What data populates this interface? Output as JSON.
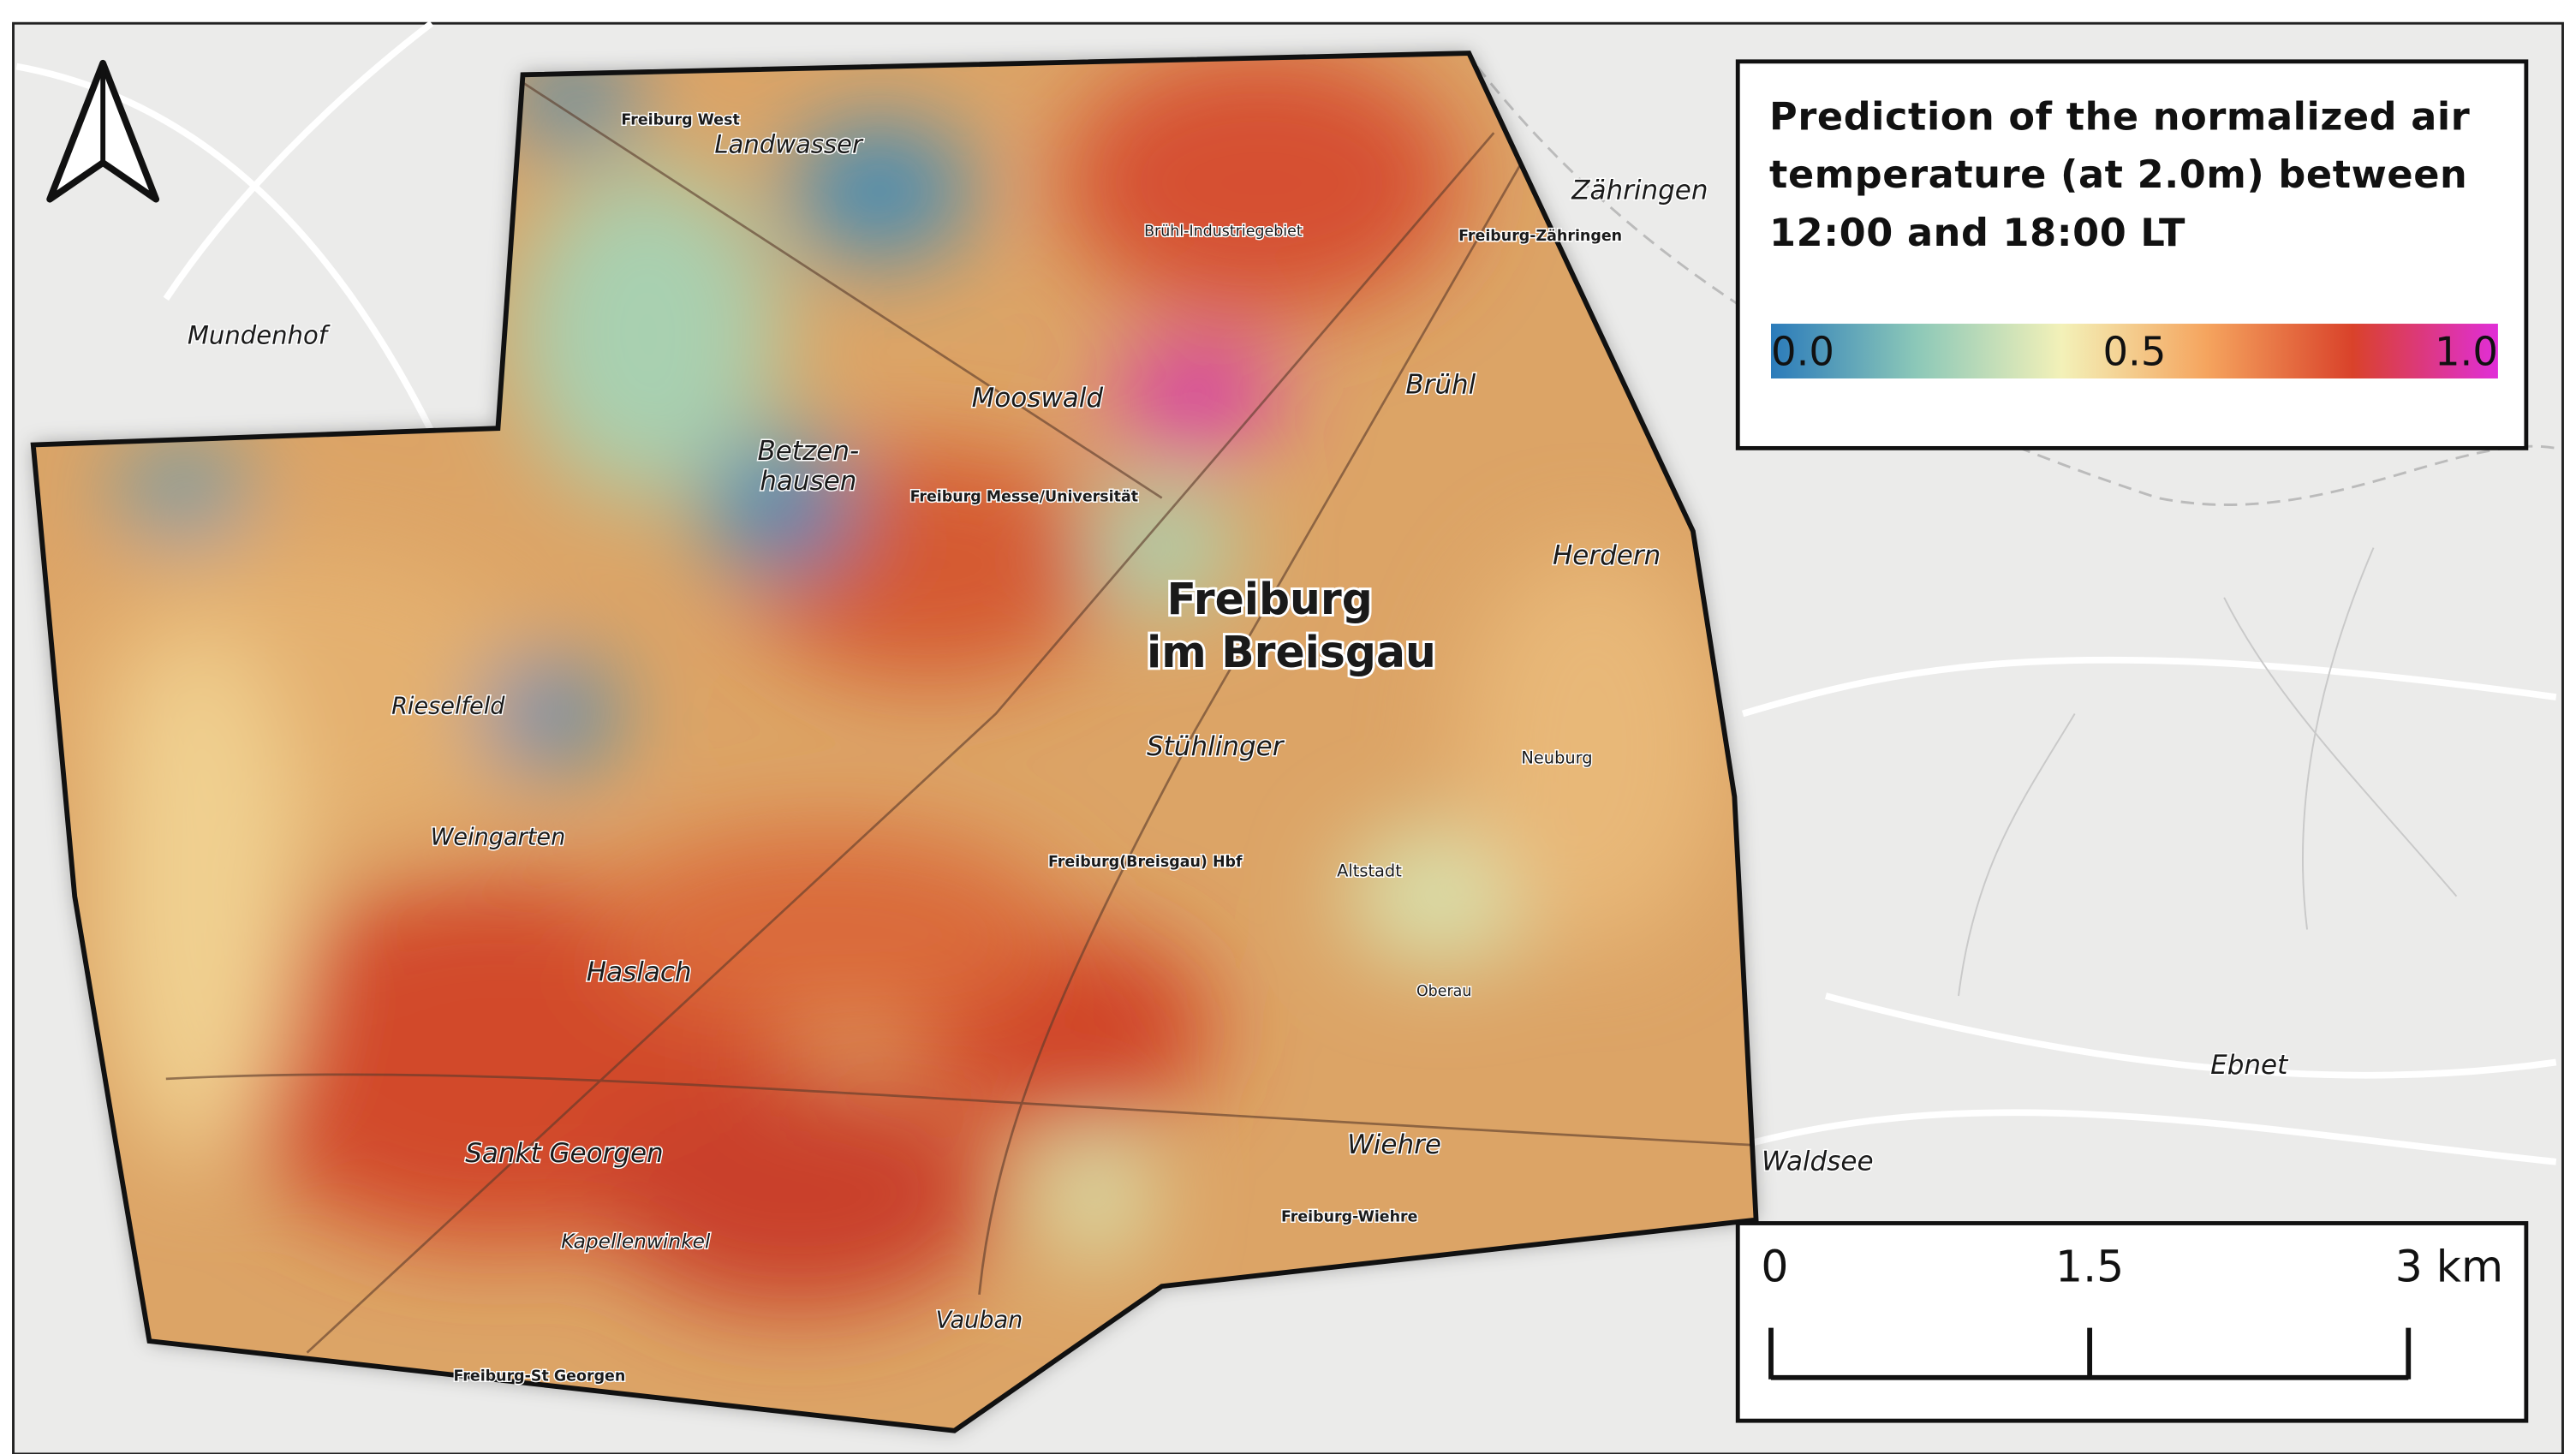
{
  "legend": {
    "title": "Prediction of the normalized air temperature (at 2.0m) between 12:00 and 18:00 LT",
    "lim": [
      0,
      1
    ],
    "ticks": [
      {
        "value": 0,
        "label": "0.0"
      },
      {
        "value": 0.5,
        "label": "0.5"
      },
      {
        "value": 1,
        "label": "1.0"
      }
    ],
    "colors": [
      "#2b7bba",
      "#8cc8b8",
      "#f3f1b8",
      "#f5a45e",
      "#d9422a",
      "#e02ed8"
    ]
  },
  "scale_bar": {
    "lim": [
      0,
      3
    ],
    "ticks": [
      0,
      1.5,
      {
        "value": 3,
        "label": "3 km"
      }
    ]
  },
  "places": [
    "Landwasser",
    "Mooswald",
    "Betzen-",
    "hausen",
    "Rieselfeld",
    "Weingarten",
    "Haslach",
    "Sankt Georgen",
    "Vauban",
    "Wiehre",
    "Stühlinger",
    "Herdern",
    "Brühl",
    "Zähringen",
    "Mundenhof",
    "Ebnet",
    "Waldsee",
    "Kapellenwinkel",
    "Freiburg",
    "im Breisgau",
    "Freiburg West",
    "Brühl-Industriegebiet",
    "Freiburg Messe/Universität",
    "Freiburg(Breisgau) Hbf",
    "Freiburg-Wiehre",
    "Freiburg-St Georgen",
    "Freiburg-Zähringen",
    "Altstadt",
    "Neuburg",
    "Oberau"
  ]
}
